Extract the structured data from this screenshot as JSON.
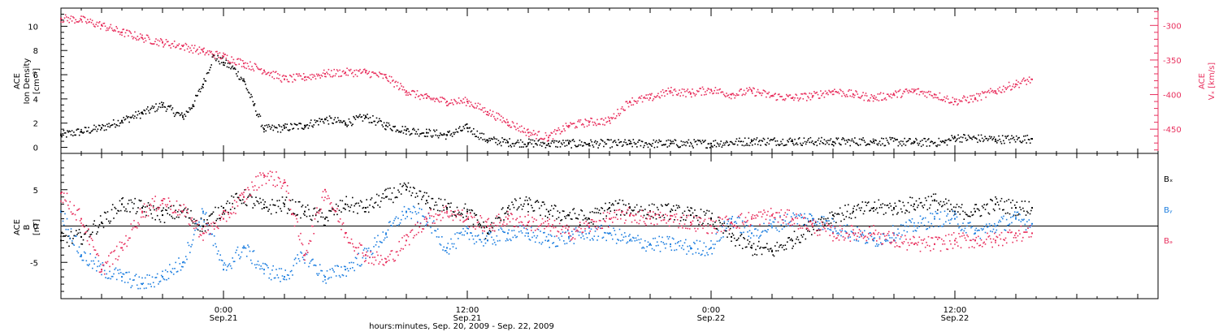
{
  "colors": {
    "black": "#000000",
    "blue": "#1e7fe0",
    "red": "#e8305e",
    "axis": "#000000"
  },
  "xaxis": {
    "title": "hours:minutes, Sep. 20, 2009 - Sep. 22, 2009",
    "major_ticks": [
      {
        "hour": 24,
        "time": "0:00",
        "date": "Sep.21"
      },
      {
        "hour": 36,
        "time": "12:00",
        "date": "Sep.21"
      },
      {
        "hour": 48,
        "time": "0:00",
        "date": "Sep.22"
      },
      {
        "hour": 60,
        "time": "12:00",
        "date": "Sep.22"
      }
    ]
  },
  "panel_top": {
    "left_label": [
      "ACE",
      "Ion Density",
      "[cm⁻³]"
    ],
    "right_label": [
      "ACE",
      "Vₓ [km/s]"
    ],
    "left_ticks": [
      "0",
      "2",
      "4",
      "6",
      "8",
      "10"
    ],
    "right_ticks": [
      "-300",
      "-350",
      "-400",
      "-450"
    ]
  },
  "panel_bottom": {
    "left_label": [
      "ACE",
      "B",
      "[nT]"
    ],
    "left_ticks": [
      "5",
      "0",
      "-5"
    ],
    "legend": [
      "Bₓ",
      "Bᵧ",
      "Bₔ"
    ]
  },
  "chart_data": [
    {
      "type": "scatter",
      "panel": "top",
      "xlabel": "hours:minutes, Sep. 20, 2009 - Sep. 22, 2009",
      "xlim": [
        16,
        70
      ],
      "grid": false,
      "series": [
        {
          "name": "Ion Density",
          "axis": "left",
          "ylabel": "ACE Ion Density [cm-3]",
          "ylim": [
            -0.5,
            11.5
          ],
          "color": "black",
          "x": [
            16,
            17,
            18,
            19,
            20,
            21,
            22,
            22.5,
            23,
            23.5,
            24,
            24.5,
            25,
            25.5,
            26,
            27,
            28,
            29,
            30,
            31,
            32,
            33,
            34,
            35,
            36,
            37,
            38,
            39,
            40,
            41,
            42,
            44,
            46,
            48,
            50,
            52,
            54,
            56,
            58,
            59.5,
            60,
            62,
            63.8
          ],
          "y": [
            1.0,
            1.3,
            1.6,
            2.2,
            2.8,
            3.5,
            2.5,
            3.5,
            5.2,
            7.5,
            7.0,
            6.5,
            5.5,
            3.5,
            1.5,
            1.6,
            1.8,
            2.3,
            2.0,
            2.5,
            1.8,
            1.4,
            1.2,
            1.0,
            1.6,
            0.6,
            0.4,
            0.35,
            0.3,
            0.3,
            0.3,
            0.3,
            0.3,
            0.3,
            0.5,
            0.5,
            0.45,
            0.5,
            0.4,
            0.4,
            0.8,
            0.65,
            0.7
          ]
        },
        {
          "name": "Vx",
          "axis": "right",
          "ylabel": "ACE Vx [km/s]",
          "ylim": [
            -485,
            -275
          ],
          "color": "red",
          "x": [
            16,
            17,
            18,
            19,
            20,
            21,
            22,
            23,
            24,
            25,
            26,
            27,
            28,
            29,
            30,
            31,
            32,
            33,
            34,
            35,
            36,
            37,
            38,
            39,
            40,
            41,
            42,
            43,
            44,
            45,
            46,
            47,
            48,
            49,
            50,
            51,
            52,
            53,
            54,
            55,
            56,
            57,
            58,
            59,
            60,
            61,
            62,
            63,
            63.8
          ],
          "y": [
            -290,
            -292,
            -300,
            -310,
            -318,
            -325,
            -330,
            -338,
            -345,
            -355,
            -365,
            -378,
            -375,
            -370,
            -368,
            -368,
            -375,
            -395,
            -405,
            -410,
            -410,
            -425,
            -440,
            -455,
            -462,
            -445,
            -440,
            -438,
            -410,
            -405,
            -395,
            -398,
            -393,
            -400,
            -395,
            -402,
            -405,
            -402,
            -395,
            -400,
            -405,
            -400,
            -395,
            -400,
            -410,
            -405,
            -395,
            -385,
            -378
          ]
        }
      ]
    },
    {
      "type": "scatter",
      "panel": "bottom",
      "xlabel": "hours:minutes, Sep. 20, 2009 - Sep. 22, 2009",
      "ylabel": "ACE B [nT]",
      "xlim": [
        16,
        70
      ],
      "ylim": [
        -10,
        10
      ],
      "grid": false,
      "series": [
        {
          "name": "Bx",
          "color": "black",
          "x": [
            16,
            17,
            18,
            19,
            20,
            21,
            22,
            23,
            24,
            25,
            26,
            27,
            28,
            29,
            30,
            31,
            32,
            33,
            34,
            35,
            36,
            37,
            38,
            39,
            40,
            41,
            42,
            43,
            44,
            45,
            46,
            47,
            48,
            49,
            50,
            51,
            52,
            53,
            54,
            55,
            56,
            57,
            58,
            59,
            60,
            61,
            62,
            63,
            63.8
          ],
          "y": [
            -2,
            -1.5,
            0.5,
            3,
            2.5,
            1.5,
            2,
            0,
            2.5,
            4,
            2.5,
            3,
            2,
            1,
            3,
            2.5,
            4,
            5,
            3.5,
            2.5,
            2,
            -1,
            2.5,
            3,
            2,
            1.5,
            1,
            2.5,
            2.5,
            2,
            2,
            1.5,
            1,
            -1.5,
            -3,
            -3.5,
            -2,
            0,
            1.5,
            2,
            2.5,
            2.5,
            3,
            3.5,
            2,
            2,
            3,
            2.5,
            2.5
          ]
        },
        {
          "name": "By",
          "color": "blue",
          "x": [
            16,
            17,
            18,
            19,
            20,
            21,
            22,
            23,
            24,
            25,
            26,
            27,
            28,
            29,
            30,
            31,
            32,
            33,
            34,
            35,
            36,
            37,
            38,
            39,
            40,
            41,
            42,
            43,
            44,
            45,
            46,
            47,
            48,
            49,
            50,
            51,
            52,
            53,
            54,
            55,
            56,
            57,
            58,
            59,
            60,
            61,
            62,
            63,
            63.8
          ],
          "y": [
            2,
            -4,
            -6,
            -7,
            -8,
            -7,
            -5,
            2,
            -6,
            -3,
            -6,
            -7,
            -4,
            -7,
            -6,
            -4,
            -1,
            2,
            1,
            -3,
            -1,
            -2,
            -1,
            -1,
            -2,
            -1.5,
            -1,
            -1,
            -2,
            -2.5,
            -2.5,
            -3,
            -3,
            1,
            -1,
            0,
            1,
            1,
            0,
            -1,
            -2,
            -1,
            0,
            1,
            1,
            -1,
            0,
            1,
            0.3
          ]
        },
        {
          "name": "Bz",
          "color": "red",
          "x": [
            16,
            17,
            18,
            19,
            20,
            21,
            22,
            23,
            24,
            25,
            26,
            27,
            28,
            29,
            30,
            31,
            32,
            33,
            34,
            35,
            36,
            37,
            38,
            39,
            40,
            41,
            42,
            43,
            44,
            45,
            46,
            47,
            48,
            49,
            50,
            51,
            52,
            53,
            54,
            55,
            56,
            57,
            58,
            59,
            60,
            61,
            62,
            63,
            63.8
          ],
          "y": [
            4.5,
            1,
            -6,
            -3,
            2,
            3.5,
            2,
            -1,
            1,
            4,
            7,
            6,
            -4,
            5,
            -1,
            -4,
            -5,
            -2,
            1,
            2,
            1,
            0,
            1,
            0.5,
            0,
            -1,
            0,
            1,
            1.5,
            1,
            1,
            0.5,
            0,
            0.5,
            1,
            1.5,
            1,
            0,
            -1,
            -1,
            -1,
            -2,
            -2.5,
            -2.5,
            -2,
            -2,
            -2,
            -1,
            -1
          ]
        }
      ]
    }
  ]
}
